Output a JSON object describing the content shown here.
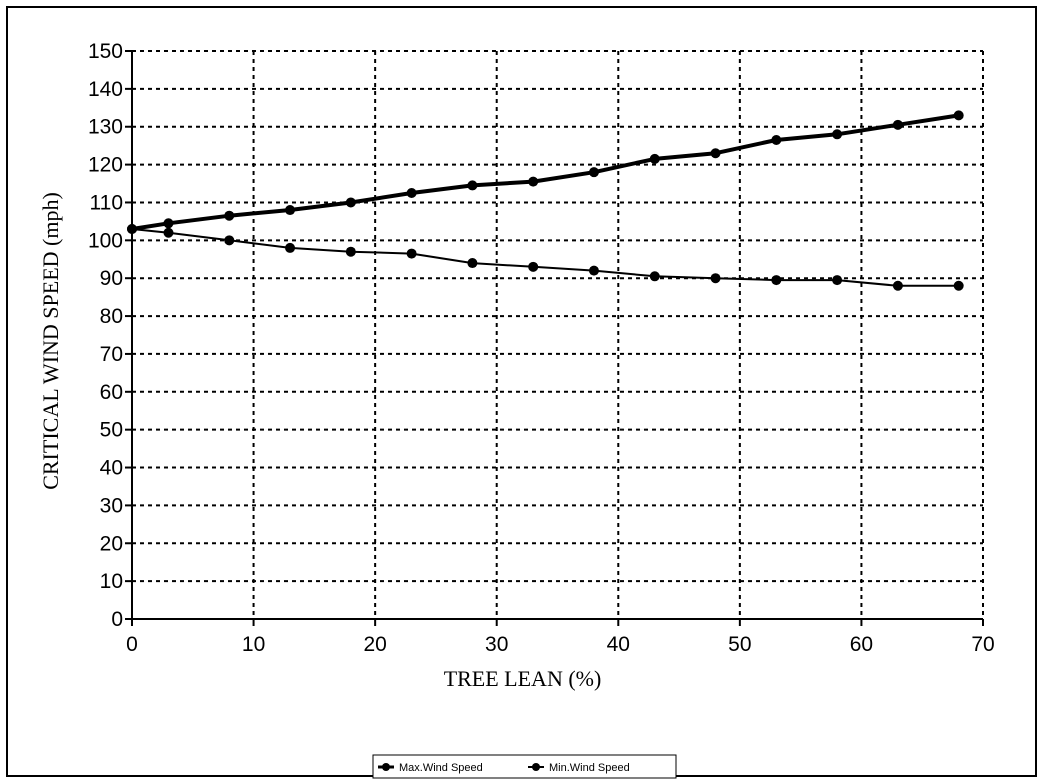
{
  "chart_data": {
    "type": "line",
    "title": "",
    "xlabel": "TREE LEAN (%)",
    "ylabel": "CRITICAL WIND SPEED (mph)",
    "xlim": [
      0,
      70
    ],
    "ylim": [
      0,
      150
    ],
    "xticks": [
      0,
      10,
      20,
      30,
      40,
      50,
      60,
      70
    ],
    "yticks": [
      0,
      10,
      20,
      30,
      40,
      50,
      60,
      70,
      80,
      90,
      100,
      110,
      120,
      130,
      140,
      150
    ],
    "grid": true,
    "legend_position": "bottom-center",
    "series": [
      {
        "name": "Max.Wind Speed",
        "color": "#000000",
        "x": [
          0,
          3,
          8,
          13,
          18,
          23,
          28,
          33,
          38,
          43,
          48,
          53,
          58,
          63,
          68
        ],
        "y": [
          103,
          104.5,
          106.5,
          108,
          110,
          112.5,
          114.5,
          115.5,
          118,
          121.5,
          123,
          126.5,
          128,
          130.5,
          133
        ]
      },
      {
        "name": "Min.Wind Speed",
        "color": "#000000",
        "x": [
          0,
          3,
          8,
          13,
          18,
          23,
          28,
          33,
          38,
          43,
          48,
          53,
          58,
          63,
          68
        ],
        "y": [
          103,
          102,
          100,
          98,
          97,
          96.5,
          94,
          93,
          92,
          90.5,
          90,
          89.5,
          89.5,
          88,
          88
        ]
      }
    ]
  }
}
